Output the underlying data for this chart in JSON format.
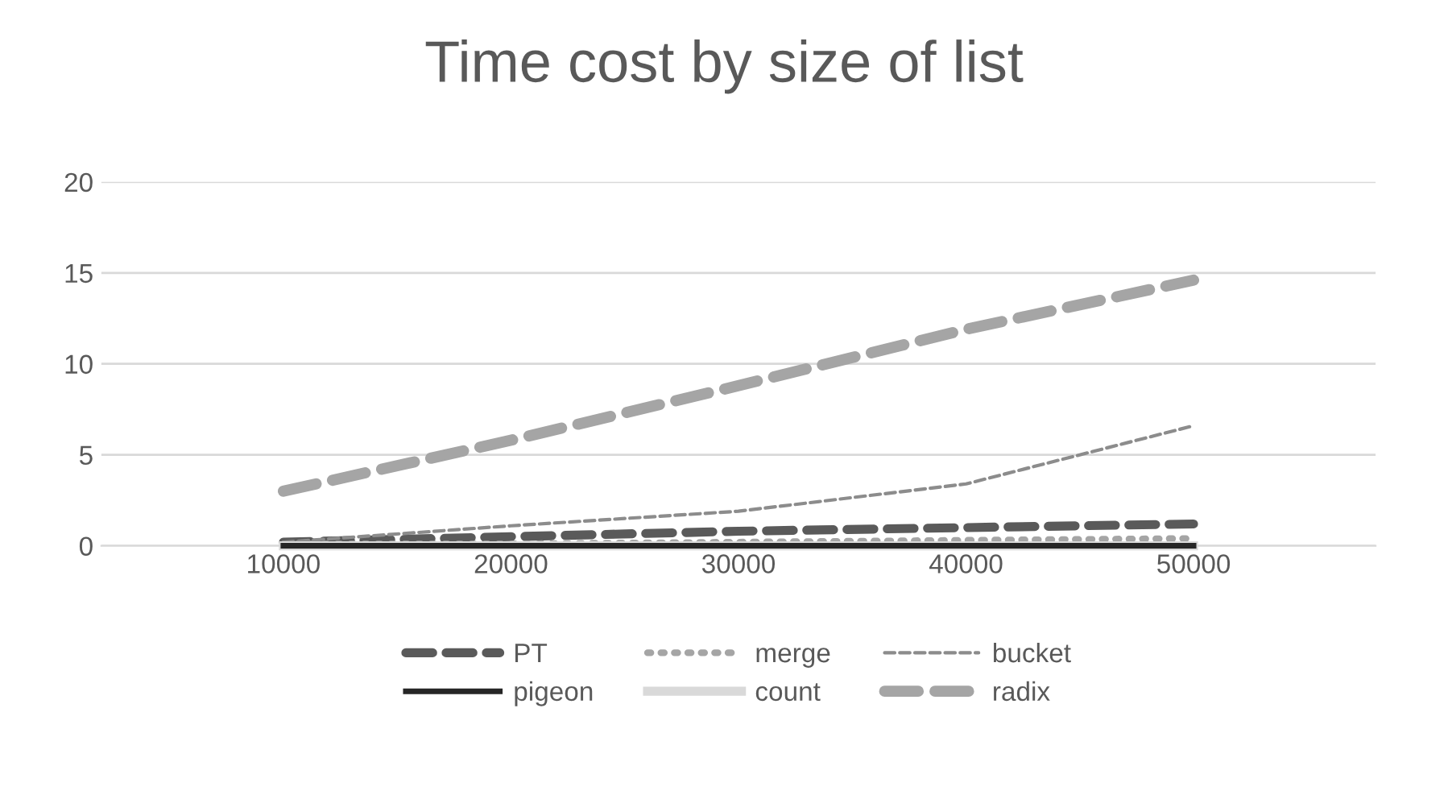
{
  "chart_data": {
    "type": "line",
    "title": "Time cost by size of list",
    "categories": [
      "10000",
      "20000",
      "30000",
      "40000",
      "50000"
    ],
    "series": [
      {
        "name": "PT",
        "color": "#5a5a5a",
        "values": [
          0.2,
          0.5,
          0.8,
          1.0,
          1.2
        ],
        "line_style": "dashed"
      },
      {
        "name": "merge",
        "color": "#a5a5a5",
        "values": [
          0.1,
          0.1,
          0.2,
          0.3,
          0.4
        ],
        "line_style": "dotted"
      },
      {
        "name": "bucket",
        "color": "#8c8c8c",
        "values": [
          0.2,
          1.1,
          1.9,
          3.4,
          6.6
        ],
        "line_style": "dashed"
      },
      {
        "name": "pigeon",
        "color": "#262626",
        "values": [
          0,
          0,
          0,
          0,
          0
        ],
        "line_style": "solid"
      },
      {
        "name": "count",
        "color": "#d9d9d9",
        "values": [
          0,
          0,
          0,
          0,
          0
        ],
        "line_style": "solid"
      },
      {
        "name": "radix",
        "color": "#a5a5a5",
        "values": [
          3.0,
          5.8,
          8.8,
          11.9,
          14.6
        ],
        "line_style": "dashed"
      }
    ],
    "ylim": [
      0,
      20
    ],
    "yticks": [
      0,
      5,
      10,
      15,
      20
    ],
    "grid": "y",
    "legend": "bottom",
    "marker": "none"
  }
}
